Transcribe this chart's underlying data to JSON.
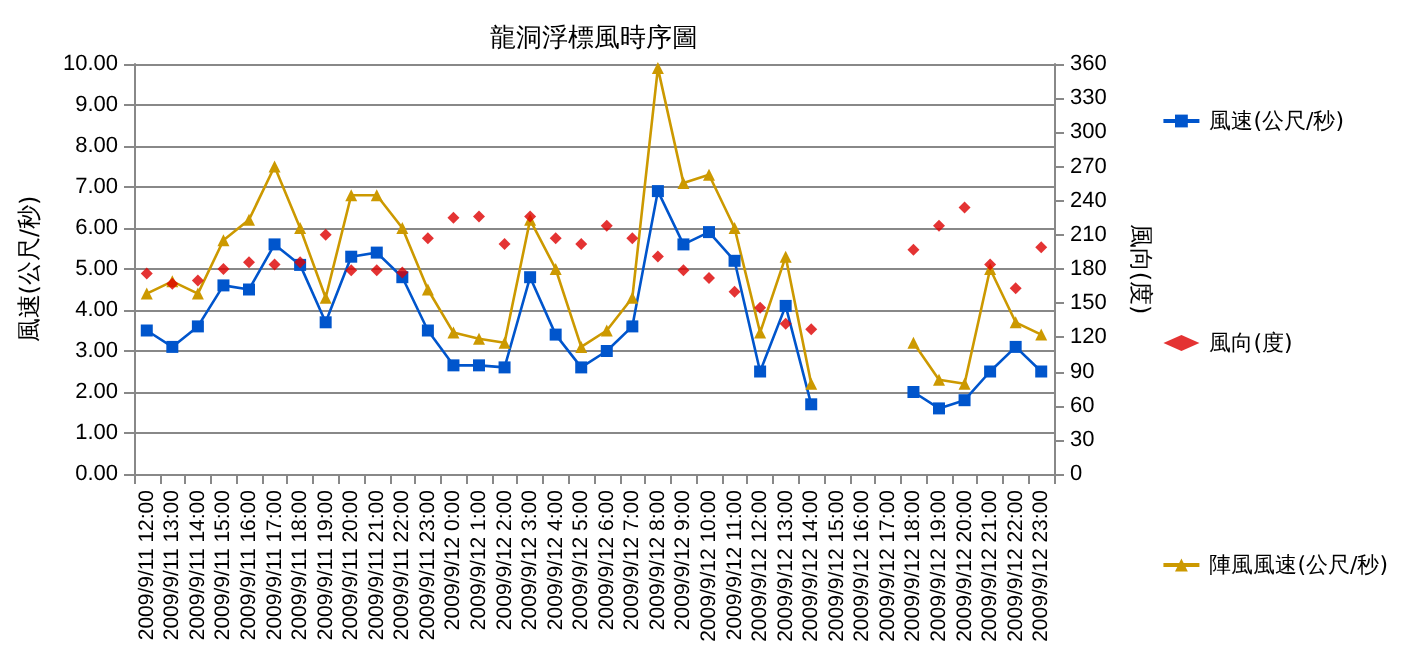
{
  "chart_data": {
    "type": "line",
    "title": "龍洞浮標風時序圖",
    "ylabel": "風速(公尺/秒)",
    "y2label": "風向(度)",
    "categories": [
      "2009/9/11 12:00",
      "2009/9/11 13:00",
      "2009/9/11 14:00",
      "2009/9/11 15:00",
      "2009/9/11 16:00",
      "2009/9/11 17:00",
      "2009/9/11 18:00",
      "2009/9/11 19:00",
      "2009/9/11 20:00",
      "2009/9/11 21:00",
      "2009/9/11 22:00",
      "2009/9/11 23:00",
      "2009/9/12 0:00",
      "2009/9/12 1:00",
      "2009/9/12 2:00",
      "2009/9/12 3:00",
      "2009/9/12 4:00",
      "2009/9/12 5:00",
      "2009/9/12 6:00",
      "2009/9/12 7:00",
      "2009/9/12 8:00",
      "2009/9/12 9:00",
      "2009/9/12 10:00",
      "2009/9/12 11:00",
      "2009/9/12 12:00",
      "2009/9/12 13:00",
      "2009/9/12 14:00",
      "2009/9/12 15:00",
      "2009/9/12 16:00",
      "2009/9/12 17:00",
      "2009/9/12 18:00",
      "2009/9/12 19:00",
      "2009/9/12 20:00",
      "2009/9/12 21:00",
      "2009/9/12 22:00",
      "2009/9/12 23:00"
    ],
    "series": [
      {
        "name": "風速(公尺/秒)",
        "marker": "square",
        "color": "#0055cc",
        "values": [
          3.5,
          3.1,
          3.6,
          4.6,
          4.5,
          5.6,
          5.1,
          3.7,
          5.3,
          5.4,
          4.8,
          3.5,
          2.65,
          2.65,
          2.6,
          4.8,
          3.4,
          2.6,
          3.0,
          3.6,
          6.9,
          5.6,
          5.9,
          5.2,
          2.5,
          4.1,
          1.7,
          null,
          null,
          null,
          2.0,
          1.6,
          1.8,
          2.5,
          3.1,
          2.5
        ]
      },
      {
        "name": "風向(度)",
        "type": "scatter",
        "marker": "diamond",
        "axis": "y2",
        "color": "#dd0000",
        "values": [
          176,
          167,
          170,
          180,
          186,
          184,
          186,
          210,
          179,
          179,
          177,
          207,
          225,
          226,
          202,
          226,
          207,
          202,
          218,
          207,
          191,
          179,
          172,
          160,
          146,
          132,
          127,
          null,
          null,
          null,
          197,
          218,
          234,
          184,
          163,
          199
        ]
      },
      {
        "name": "陣風風速(公尺/秒)",
        "marker": "triangle",
        "color": "#cc9900",
        "values": [
          4.4,
          4.7,
          4.4,
          5.7,
          6.2,
          7.5,
          6.0,
          4.3,
          6.8,
          6.8,
          6.0,
          4.5,
          3.45,
          3.3,
          3.2,
          6.2,
          5.0,
          3.1,
          3.5,
          4.3,
          9.9,
          7.1,
          7.3,
          6.0,
          3.45,
          5.3,
          2.2,
          null,
          null,
          null,
          3.2,
          2.3,
          2.2,
          5.0,
          3.7,
          3.4
        ]
      }
    ],
    "ylim": [
      0,
      10
    ],
    "yticks": [
      {
        "value": 0,
        "label": "0.00"
      },
      {
        "value": 1,
        "label": "1.00"
      },
      {
        "value": 2,
        "label": "2.00"
      },
      {
        "value": 3,
        "label": "3.00"
      },
      {
        "value": 4,
        "label": "4.00"
      },
      {
        "value": 5,
        "label": "5.00"
      },
      {
        "value": 6,
        "label": "6.00"
      },
      {
        "value": 7,
        "label": "7.00"
      },
      {
        "value": 8,
        "label": "8.00"
      },
      {
        "value": 9,
        "label": "9.00"
      },
      {
        "value": 10,
        "label": "10.00"
      }
    ],
    "y2lim": [
      0,
      360
    ],
    "y2ticks": [
      0,
      30,
      60,
      90,
      120,
      150,
      180,
      210,
      240,
      270,
      300,
      330,
      360
    ],
    "grid": "y",
    "legend": "right"
  }
}
